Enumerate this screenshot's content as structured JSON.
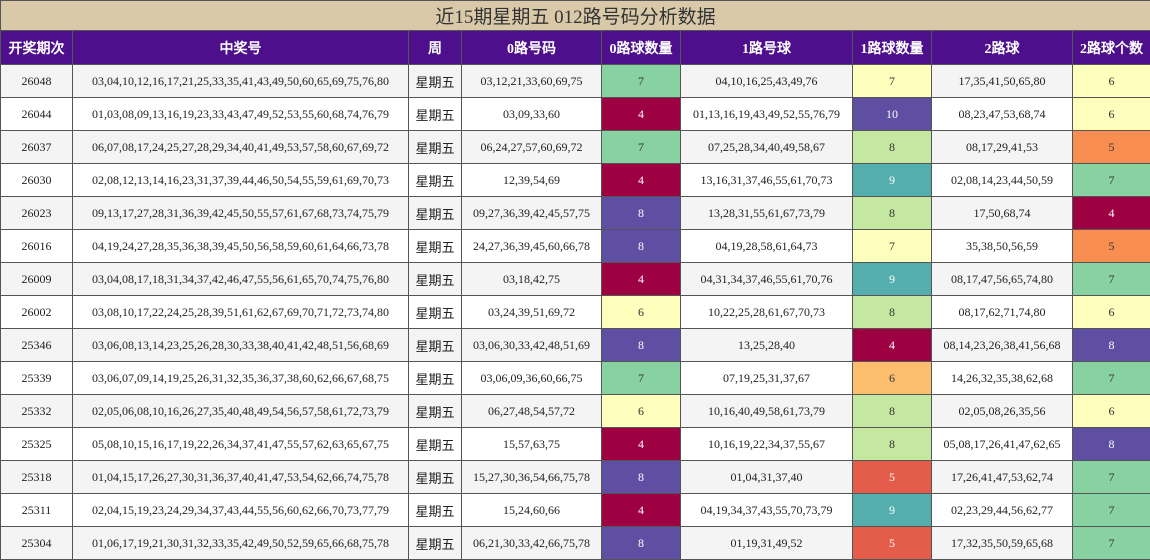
{
  "table": {
    "title": "近15期星期五 012路号码分析数据",
    "headers": [
      "开奖期次",
      "中奖号",
      "周",
      "0路号码",
      "0路球数量",
      "1路号球",
      "1路球数量",
      "2路球",
      "2路球个数"
    ],
    "rows": [
      {
        "cells": [
          "26048",
          "03,04,10,12,16,17,21,25,33,35,41,43,49,50,60,65,69,75,76,80",
          "星期五",
          "03,12,21,33,60,69,75",
          7,
          "04,10,16,25,43,49,76",
          7,
          "17,35,41,50,65,80",
          6
        ],
        "colors": [
          "#88d1a1",
          "#fefebd",
          "#fefebd"
        ]
      },
      {
        "cells": [
          "26044",
          "01,03,08,09,13,16,19,23,33,43,47,49,52,53,55,60,68,74,76,79",
          "星期五",
          "03,09,33,60",
          4,
          "01,13,16,19,43,49,52,55,76,79",
          10,
          "08,23,47,53,68,74",
          6
        ],
        "colors": [
          "#9e0142",
          "#5e4fa2",
          "#fefebd"
        ]
      },
      {
        "cells": [
          "26037",
          "06,07,08,17,24,25,27,28,29,34,40,41,49,53,57,58,60,67,69,72",
          "星期五",
          "06,24,27,57,60,69,72",
          7,
          "07,25,28,34,40,49,58,67",
          8,
          "08,17,29,41,53",
          5
        ],
        "colors": [
          "#88d1a1",
          "#c5e8a0",
          "#f98e52"
        ]
      },
      {
        "cells": [
          "26030",
          "02,08,12,13,14,16,23,31,37,39,44,46,50,54,55,59,61,69,70,73",
          "星期五",
          "12,39,54,69",
          4,
          "13,16,31,37,46,55,61,70,73",
          9,
          "02,08,14,23,44,50,59",
          7
        ],
        "colors": [
          "#9e0142",
          "#54aead",
          "#88d1a1"
        ]
      },
      {
        "cells": [
          "26023",
          "09,13,17,27,28,31,36,39,42,45,50,55,57,61,67,68,73,74,75,79",
          "星期五",
          "09,27,36,39,42,45,57,75",
          8,
          "13,28,31,55,61,67,73,79",
          8,
          "17,50,68,74",
          4
        ],
        "colors": [
          "#5e4fa2",
          "#c5e8a0",
          "#9e0142"
        ]
      },
      {
        "cells": [
          "26016",
          "04,19,24,27,28,35,36,38,39,45,50,56,58,59,60,61,64,66,73,78",
          "星期五",
          "24,27,36,39,45,60,66,78",
          8,
          "04,19,28,58,61,64,73",
          7,
          "35,38,50,56,59",
          5
        ],
        "colors": [
          "#5e4fa2",
          "#fefebd",
          "#f98e52"
        ]
      },
      {
        "cells": [
          "26009",
          "03,04,08,17,18,31,34,37,42,46,47,55,56,61,65,70,74,75,76,80",
          "星期五",
          "03,18,42,75",
          4,
          "04,31,34,37,46,55,61,70,76",
          9,
          "08,17,47,56,65,74,80",
          7
        ],
        "colors": [
          "#9e0142",
          "#54aead",
          "#88d1a1"
        ]
      },
      {
        "cells": [
          "26002",
          "03,08,10,17,22,24,25,28,39,51,61,62,67,69,70,71,72,73,74,80",
          "星期五",
          "03,24,39,51,69,72",
          6,
          "10,22,25,28,61,67,70,73",
          8,
          "08,17,62,71,74,80",
          6
        ],
        "colors": [
          "#fefebd",
          "#c5e8a0",
          "#fefebd"
        ]
      },
      {
        "cells": [
          "25346",
          "03,06,08,13,14,23,25,26,28,30,33,38,40,41,42,48,51,56,68,69",
          "星期五",
          "03,06,30,33,42,48,51,69",
          8,
          "13,25,28,40",
          4,
          "08,14,23,26,38,41,56,68",
          8
        ],
        "colors": [
          "#5e4fa2",
          "#9e0142",
          "#5e4fa2"
        ]
      },
      {
        "cells": [
          "25339",
          "03,06,07,09,14,19,25,26,31,32,35,36,37,38,60,62,66,67,68,75",
          "星期五",
          "03,06,09,36,60,66,75",
          7,
          "07,19,25,31,37,67",
          6,
          "14,26,32,35,38,62,68",
          7
        ],
        "colors": [
          "#88d1a1",
          "#fdbe6e",
          "#88d1a1"
        ]
      },
      {
        "cells": [
          "25332",
          "02,05,06,08,10,16,26,27,35,40,48,49,54,56,57,58,61,72,73,79",
          "星期五",
          "06,27,48,54,57,72",
          6,
          "10,16,40,49,58,61,73,79",
          8,
          "02,05,08,26,35,56",
          6
        ],
        "colors": [
          "#fefebd",
          "#c5e8a0",
          "#fefebd"
        ]
      },
      {
        "cells": [
          "25325",
          "05,08,10,15,16,17,19,22,26,34,37,41,47,55,57,62,63,65,67,75",
          "星期五",
          "15,57,63,75",
          4,
          "10,16,19,22,34,37,55,67",
          8,
          "05,08,17,26,41,47,62,65",
          8
        ],
        "colors": [
          "#9e0142",
          "#c5e8a0",
          "#5e4fa2"
        ]
      },
      {
        "cells": [
          "25318",
          "01,04,15,17,26,27,30,31,36,37,40,41,47,53,54,62,66,74,75,78",
          "星期五",
          "15,27,30,36,54,66,75,78",
          8,
          "01,04,31,37,40",
          5,
          "17,26,41,47,53,62,74",
          7
        ],
        "colors": [
          "#5e4fa2",
          "#e45d4a",
          "#88d1a1"
        ]
      },
      {
        "cells": [
          "25311",
          "02,04,15,19,23,24,29,34,37,43,44,55,56,60,62,66,70,73,77,79",
          "星期五",
          "15,24,60,66",
          4,
          "04,19,34,37,43,55,70,73,79",
          9,
          "02,23,29,44,56,62,77",
          7
        ],
        "colors": [
          "#9e0142",
          "#54aead",
          "#88d1a1"
        ]
      },
      {
        "cells": [
          "25304",
          "01,06,17,19,21,30,31,32,33,35,42,49,50,52,59,65,66,68,75,78",
          "星期五",
          "06,21,30,33,42,66,75,78",
          8,
          "01,19,31,49,52",
          5,
          "17,32,35,50,59,65,68",
          7
        ],
        "colors": [
          "#5e4fa2",
          "#e45d4a",
          "#88d1a1"
        ]
      }
    ]
  }
}
